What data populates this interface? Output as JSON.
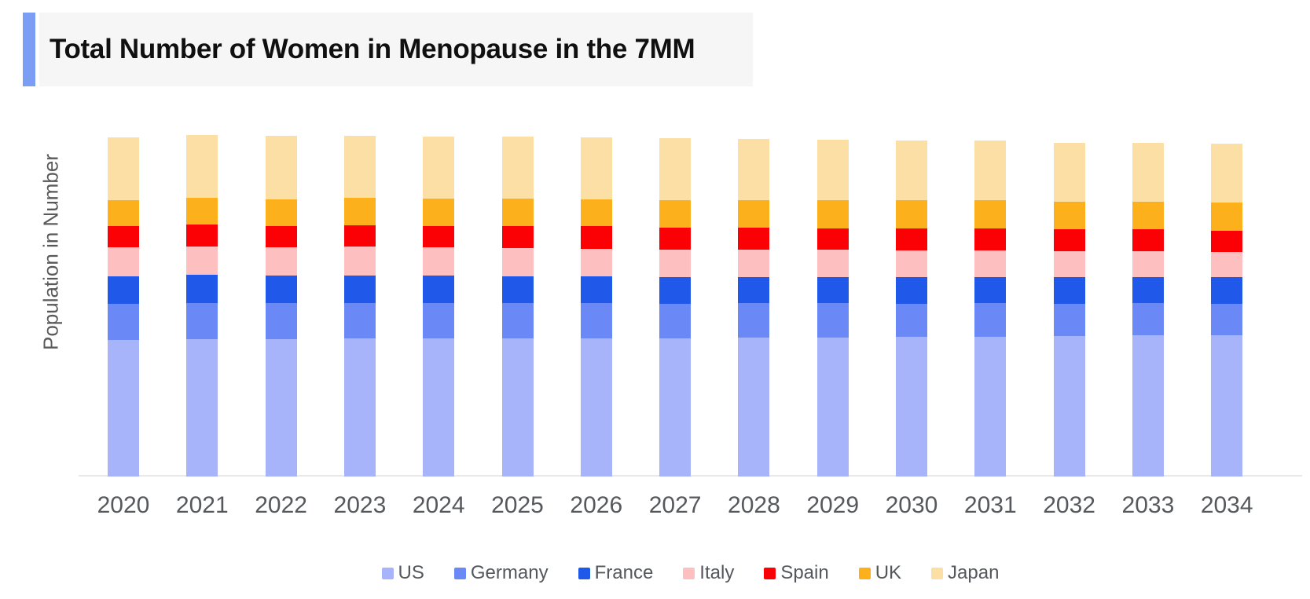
{
  "header": {
    "title": "Total Number of Women in Menopause in the 7MM"
  },
  "colors": {
    "accent_bar": "#7c9df4",
    "header_background": "#f6f6f6",
    "title_text": "#101010",
    "axis_line": "#e8e8e8",
    "axis_text": "#55585c",
    "legend_text": "#54585d",
    "page_background": "#ffffff"
  },
  "chart_data": {
    "type": "bar",
    "stacked": true,
    "title": "Total Number of Women in Menopause in the 7MM",
    "xlabel": "",
    "ylabel": "Population in Number",
    "value_units": "relative (no numeric ticks or gridlines shown; 100 = tallest bar)",
    "ylim": [
      0,
      100
    ],
    "grid": false,
    "legend_position": "bottom",
    "categories": [
      "2020",
      "2021",
      "2022",
      "2023",
      "2024",
      "2025",
      "2026",
      "2027",
      "2028",
      "2029",
      "2030",
      "2031",
      "2032",
      "2033",
      "2034"
    ],
    "series": [
      {
        "name": "US",
        "color": "#a7b4fa",
        "values": [
          40.0,
          40.3,
          40.3,
          40.4,
          40.4,
          40.4,
          40.4,
          40.4,
          40.6,
          40.7,
          40.8,
          41.0,
          41.1,
          41.3,
          41.4
        ]
      },
      {
        "name": "Germany",
        "color": "#6b88f7",
        "values": [
          10.6,
          10.6,
          10.5,
          10.5,
          10.4,
          10.4,
          10.3,
          10.2,
          10.1,
          10.0,
          9.8,
          9.7,
          9.5,
          9.4,
          9.2
        ]
      },
      {
        "name": "France",
        "color": "#2059e9",
        "values": [
          8.1,
          8.1,
          8.0,
          8.0,
          8.0,
          7.9,
          7.9,
          7.8,
          7.8,
          7.8,
          7.8,
          7.8,
          7.8,
          7.8,
          7.8
        ]
      },
      {
        "name": "Italy",
        "color": "#febfc1",
        "values": [
          8.5,
          8.5,
          8.4,
          8.4,
          8.3,
          8.3,
          8.2,
          8.1,
          8.0,
          7.9,
          7.9,
          7.8,
          7.7,
          7.6,
          7.5
        ]
      },
      {
        "name": "Spain",
        "color": "#fb0005",
        "values": [
          6.2,
          6.3,
          6.3,
          6.4,
          6.4,
          6.4,
          6.5,
          6.5,
          6.5,
          6.4,
          6.4,
          6.4,
          6.3,
          6.3,
          6.2
        ]
      },
      {
        "name": "UK",
        "color": "#fcb01b",
        "values": [
          7.7,
          7.8,
          7.8,
          7.9,
          7.9,
          8.0,
          8.0,
          8.1,
          8.1,
          8.1,
          8.2,
          8.3,
          8.2,
          8.2,
          8.2
        ]
      },
      {
        "name": "Japan",
        "color": "#fcdfa4",
        "values": [
          18.4,
          18.5,
          18.5,
          18.4,
          18.3,
          18.2,
          18.1,
          18.0,
          17.9,
          17.8,
          17.7,
          17.4,
          17.3,
          17.2,
          17.4
        ]
      }
    ]
  }
}
